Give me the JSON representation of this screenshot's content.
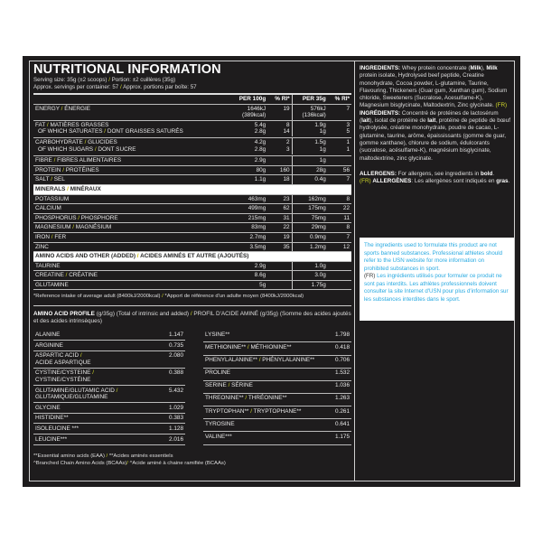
{
  "title": "NUTRITIONAL INFORMATION",
  "serving": {
    "en": "Serving size: 35g (±2 scoops)",
    "fr": "Portion: ±2 cuillères (35g)"
  },
  "servings": {
    "en": "Approx. servings per container: 57",
    "fr": "Approx. portions par boîte: 57"
  },
  "headers": [
    "PER 100g",
    "% RI*",
    "PER 35g",
    "% RI*"
  ],
  "nutrients": [
    {
      "en": "ENERGY",
      "fr": "ÉNERGIE",
      "v": [
        "1646kJ\n(389kcal)",
        "19",
        "576kJ\n(136kcal)",
        "7"
      ]
    },
    {
      "en": "FAT",
      "fr": "MATIÈRES GRASSES",
      "v": [
        "5.4g",
        "8",
        "1.9g",
        "3"
      ],
      "sub": {
        "en": "OF WHICH SATURATES",
        "fr": "DONT GRAISSES SATURÉS",
        "v": [
          "2.8g",
          "14",
          "1g",
          "5"
        ]
      }
    },
    {
      "en": "CARBOHYDRATE",
      "fr": "GLUCIDES",
      "v": [
        "4.2g",
        "2",
        "1.5g",
        "1"
      ],
      "sub": {
        "en": "OF WHICH SUGARS",
        "fr": "DONT SUCRE",
        "v": [
          "2.8g",
          "3",
          "1g",
          "1"
        ]
      }
    },
    {
      "en": "FIBRE",
      "fr": "FIBRES ALIMENTAIRES",
      "v": [
        "2.9g",
        "",
        "1g",
        ""
      ]
    },
    {
      "en": "PROTEIN",
      "fr": "PROTÉINES",
      "v": [
        "80g",
        "160",
        "28g",
        "56"
      ]
    },
    {
      "en": "SALT",
      "fr": "SEL",
      "v": [
        "1.1g",
        "18",
        "0.4g",
        "7"
      ]
    }
  ],
  "minerals_header": {
    "en": "MINERALS",
    "fr": "MINÉRAUX"
  },
  "minerals": [
    {
      "en": "POTASSIUM",
      "fr": "",
      "v": [
        "463mg",
        "23",
        "162mg",
        "8"
      ]
    },
    {
      "en": "CALCIUM",
      "fr": "",
      "v": [
        "499mg",
        "62",
        "175mg",
        "22"
      ]
    },
    {
      "en": "PHOSPHORUS",
      "fr": "PHOSPHORE",
      "v": [
        "215mg",
        "31",
        "75mg",
        "11"
      ]
    },
    {
      "en": "MAGNESIUM",
      "fr": "MAGNÉSIUM",
      "v": [
        "83mg",
        "22",
        "29mg",
        "8"
      ]
    },
    {
      "en": "IRON",
      "fr": "FER",
      "v": [
        "2.7mg",
        "19",
        "0.9mg",
        "7"
      ]
    },
    {
      "en": "ZINC",
      "fr": "",
      "v": [
        "3.5mg",
        "35",
        "1.2mg",
        "12"
      ]
    }
  ],
  "added_header": {
    "en": "AMINO ACIDS AND OTHER (ADDED)",
    "fr": "ACIDES AMINÉS ET AUTRE (AJOUTÉS)"
  },
  "added": [
    {
      "en": "TAURINE",
      "fr": "",
      "v": [
        "2.9g",
        "",
        "1.0g",
        ""
      ]
    },
    {
      "en": "CREATINE",
      "fr": "CRÉATINE",
      "v": [
        "8.6g",
        "",
        "3.0g",
        ""
      ]
    },
    {
      "en": "GLUTAMINE",
      "fr": "",
      "v": [
        "5g",
        "",
        "1.75g",
        ""
      ]
    }
  ],
  "ri_note": {
    "en": "*Reference intake of average adult (8400kJ/2000kcal)",
    "fr": "*Apport de référence d'un adulte moyen  (8400kJ/2000kcal)"
  },
  "amino_profile": {
    "title": "AMINO ACID PROFILE",
    "en": "(g/35g) (Total of intrinsic and added)",
    "fr": "PROFIL D'ACIDE AMINÉ (g/35g) (Somme des acides ajoutés et des acides intrinsèques)"
  },
  "amino_left": [
    {
      "en": "ALANINE",
      "fr": "",
      "v": "1.147"
    },
    {
      "en": "ARGININE",
      "fr": "",
      "v": "0.735"
    },
    {
      "en": "ASPARTIC ACID",
      "fr": "ACIDE ASPARTIQUE",
      "v": "2.080"
    },
    {
      "en": "CYSTINE/CYSTEINE",
      "fr": "CYSTINE/CYSTÉINE",
      "v": "0.388"
    },
    {
      "en": "GLUTAMINE/GLUTAMIC ACID",
      "fr": "GLUTAMIQUE/GLUTAMINE",
      "v": "5.432"
    },
    {
      "en": "GLYCINE",
      "fr": "",
      "v": "1.029"
    },
    {
      "en": "HISTIDINE**",
      "fr": "",
      "v": "0.383"
    },
    {
      "en": "ISOLEUCINE ***",
      "fr": "",
      "v": "1.128"
    },
    {
      "en": "LEUCINE***",
      "fr": "",
      "v": "2.016"
    }
  ],
  "amino_right": [
    {
      "en": "LYSINE**",
      "fr": "",
      "v": "1.798"
    },
    {
      "en": "METHIONINE**",
      "fr": "MÉTHIONINE**",
      "v": "0.418"
    },
    {
      "en": "PHENYLALANINE**",
      "fr": "PHÉNYLALANINE**",
      "v": "0.706"
    },
    {
      "en": "PROLINE",
      "fr": "",
      "v": "1.532"
    },
    {
      "en": "SERINE",
      "fr": "SÉRINE",
      "v": "1.036"
    },
    {
      "en": "THREONINE**",
      "fr": "THRÉONINE**",
      "v": "1.263"
    },
    {
      "en": "TRYPTOPHAN**",
      "fr": "TRYPTOPHANE**",
      "v": "0.261"
    },
    {
      "en": "TYROSINE",
      "fr": "",
      "v": "0.641"
    },
    {
      "en": "VALINE***",
      "fr": "",
      "v": "1.175"
    }
  ],
  "eaa_note": {
    "en": "**Essential amino acids (EAA)",
    "fr": "**Acides aminés essentiels"
  },
  "bcaa_note": {
    "en": "^Branched Chain Amino Acids (BCAAs)",
    "fr": "^Acide aminé à chaine ramifiée (BCAAs)"
  },
  "ingredients": {
    "label": "INGREDIENTS:",
    "text_parts": [
      " Whey protein concentrate (",
      "Milk",
      "), ",
      "Milk",
      " protein isolate, Hydrolysed beef peptide, Creatine monohydrate, Cocoa powder, L-glutamine, Taurine, Flavouring, Thickeners (Guar gum, Xanthan gum), Sodium chloride, Sweeteners (Sucralose, Acesulfame-K), Magnesium bisglycinate, Maltodextrin, Zinc glycinate. "
    ],
    "fr_tag": "(FR)",
    "fr_label": "INGRÉDIENTS:",
    "fr_parts": [
      " Concentré de protéines de lactosérum (",
      "lait",
      "), isolat de protéine de ",
      "lait",
      ", protéine de peptide de bœuf hydrolysée, créatine monohydrate, poudre de cacao, L- glutamine, taurine, arôme, épaississants (gomme de guar, gomme xanthane), chlorure de sodium, édulcorants (sucralose, acésulfame-K), magnésium bisglycinate, maltodextrine, zinc glycinate."
    ]
  },
  "allergens": {
    "label": "ALLERGENS:",
    "text": " For allergens, see ingredients in ",
    "bold": "bold",
    "fr_tag": "(FR)",
    "fr_label": "ALLERGÈNES",
    "fr_text": ": Les allergènes sont indiqués en ",
    "fr_bold": "gras",
    "end": "."
  },
  "notice": {
    "en": "The ingredients used to formulate this product are not sports banned substances. Professional athletes should refer to the USN website for more information on prohibited substances in sport.",
    "fr_tag": "(FR)",
    "fr": " Les ingrédients utilisés pour formuler ce produit ne sont pas interdits. Les athlètes professionnels doivent consulter la site Internet d'USN pour plus d'information sur les substances interdites dans le sport."
  },
  "colors": {
    "background": "#1e1c1d",
    "slash_accent": "#d4dc2a",
    "notice_text": "#27a9e1"
  }
}
